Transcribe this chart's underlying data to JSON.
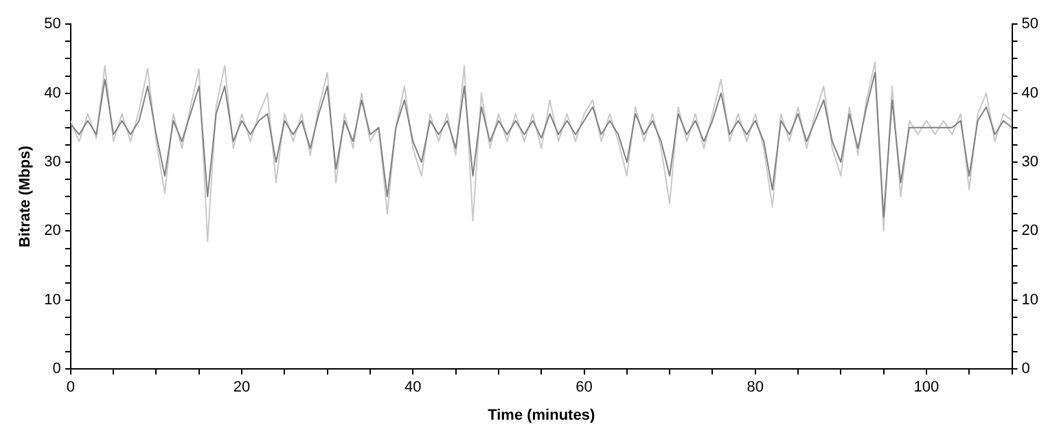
{
  "chart_data": {
    "type": "line",
    "xlabel": "Time (minutes)",
    "ylabel": "Bitrate (Mbps)",
    "x": [
      0,
      1,
      2,
      3,
      4,
      5,
      6,
      7,
      8,
      9,
      10,
      11,
      12,
      13,
      14,
      15,
      16,
      17,
      18,
      19,
      20,
      21,
      22,
      23,
      24,
      25,
      26,
      27,
      28,
      29,
      30,
      31,
      32,
      33,
      34,
      35,
      36,
      37,
      38,
      39,
      40,
      41,
      42,
      43,
      44,
      45,
      46,
      47,
      48,
      49,
      50,
      51,
      52,
      53,
      54,
      55,
      56,
      57,
      58,
      59,
      60,
      61,
      62,
      63,
      64,
      65,
      66,
      67,
      68,
      69,
      70,
      71,
      72,
      73,
      74,
      75,
      76,
      77,
      78,
      79,
      80,
      81,
      82,
      83,
      84,
      85,
      86,
      87,
      88,
      89,
      90,
      91,
      92,
      93,
      94,
      95,
      96,
      97,
      98,
      99,
      100,
      101,
      102,
      103,
      104,
      105,
      106,
      107,
      108,
      109,
      110
    ],
    "series": [
      {
        "color": "#c8c8c8",
        "values": [
          36,
          33,
          37,
          33.5,
          44,
          33,
          37,
          33,
          37.5,
          43.5,
          33,
          25.5,
          37,
          32,
          38,
          43.5,
          18.5,
          38,
          44,
          32,
          37,
          33,
          37,
          40,
          27,
          37,
          33,
          37,
          31,
          38,
          43,
          27,
          37,
          32,
          40,
          33,
          35,
          22.5,
          35,
          41,
          32,
          28,
          37,
          33,
          37,
          31,
          44,
          21.5,
          40,
          32,
          37,
          33,
          37,
          33,
          37,
          32,
          39,
          33,
          37,
          33,
          37,
          39,
          33,
          37,
          33,
          28,
          38,
          33,
          37,
          32,
          24,
          38,
          33,
          37,
          32,
          37,
          42,
          33,
          37,
          33,
          37,
          32,
          23.5,
          37,
          33,
          38,
          32,
          37,
          41,
          32,
          28,
          38,
          31,
          39,
          44.5,
          20,
          41,
          25,
          36,
          34,
          36,
          34,
          36,
          34,
          37,
          26,
          37,
          40,
          33,
          37,
          36
        ]
      },
      {
        "color": "#808080",
        "values": [
          35.5,
          34,
          36,
          34,
          42,
          34,
          36,
          34,
          36,
          41,
          34,
          28,
          36,
          33,
          37,
          41,
          25,
          37,
          41,
          33,
          36,
          34,
          36,
          37,
          30,
          36,
          34,
          36,
          32,
          37,
          41,
          29,
          36,
          33,
          39,
          34,
          35,
          25,
          35,
          39,
          33,
          30,
          36,
          34,
          36,
          32,
          41,
          28,
          38,
          33,
          36,
          34,
          36,
          34,
          36,
          33.5,
          37,
          34,
          36,
          34,
          36,
          38,
          34,
          36,
          34,
          30,
          37,
          34,
          36,
          33,
          28,
          37,
          34,
          36,
          33,
          36,
          40,
          34,
          36,
          34,
          36,
          33,
          26,
          36,
          34,
          37,
          33,
          36,
          39,
          33,
          30,
          37,
          32,
          38,
          43,
          22,
          39,
          27,
          35,
          35,
          35,
          35,
          35,
          35,
          36,
          28,
          36,
          38,
          34,
          36,
          35
        ]
      }
    ],
    "xlim": [
      0,
      110
    ],
    "xticks": [
      0,
      {
        "value": 5,
        "label": null
      },
      {
        "value": 10,
        "label": null
      },
      {
        "value": 15,
        "label": null
      },
      20,
      {
        "value": 25,
        "label": null
      },
      {
        "value": 30,
        "label": null
      },
      {
        "value": 35,
        "label": null
      },
      40,
      {
        "value": 45,
        "label": null
      },
      {
        "value": 50,
        "label": null
      },
      {
        "value": 55,
        "label": null
      },
      60,
      {
        "value": 65,
        "label": null
      },
      {
        "value": 70,
        "label": null
      },
      {
        "value": 75,
        "label": null
      },
      80,
      {
        "value": 85,
        "label": null
      },
      {
        "value": 90,
        "label": null
      },
      {
        "value": 95,
        "label": null
      },
      100,
      {
        "value": 105,
        "label": null
      },
      {
        "value": 110,
        "label": null
      }
    ],
    "ylim": [
      0,
      50
    ],
    "yticks": [
      0,
      {
        "value": 2.5,
        "label": null
      },
      {
        "value": 5,
        "label": null
      },
      {
        "value": 7.5,
        "label": null
      },
      10,
      {
        "value": 12.5,
        "label": null
      },
      {
        "value": 15,
        "label": null
      },
      {
        "value": 17.5,
        "label": null
      },
      20,
      {
        "value": 22.5,
        "label": null
      },
      {
        "value": 25,
        "label": null
      },
      {
        "value": 27.5,
        "label": null
      },
      30,
      {
        "value": 32.5,
        "label": null
      },
      {
        "value": 35,
        "label": null
      },
      {
        "value": 37.5,
        "label": null
      },
      40,
      {
        "value": 42.5,
        "label": null
      },
      {
        "value": 45,
        "label": null
      },
      {
        "value": 47.5,
        "label": null
      },
      50
    ],
    "y2lim": [
      0,
      50
    ],
    "y2ticks": [
      0,
      {
        "value": 2.5,
        "label": null
      },
      {
        "value": 5,
        "label": null
      },
      {
        "value": 7.5,
        "label": null
      },
      10,
      {
        "value": 12.5,
        "label": null
      },
      {
        "value": 15,
        "label": null
      },
      {
        "value": 17.5,
        "label": null
      },
      20,
      {
        "value": 22.5,
        "label": null
      },
      {
        "value": 25,
        "label": null
      },
      {
        "value": 27.5,
        "label": null
      },
      30,
      {
        "value": 32.5,
        "label": null
      },
      {
        "value": 35,
        "label": null
      },
      {
        "value": 37.5,
        "label": null
      },
      40,
      {
        "value": 42.5,
        "label": null
      },
      {
        "value": 45,
        "label": null
      },
      {
        "value": 47.5,
        "label": null
      },
      50
    ],
    "grid": false,
    "legend": false,
    "marker": "none",
    "line_style": "solid"
  }
}
